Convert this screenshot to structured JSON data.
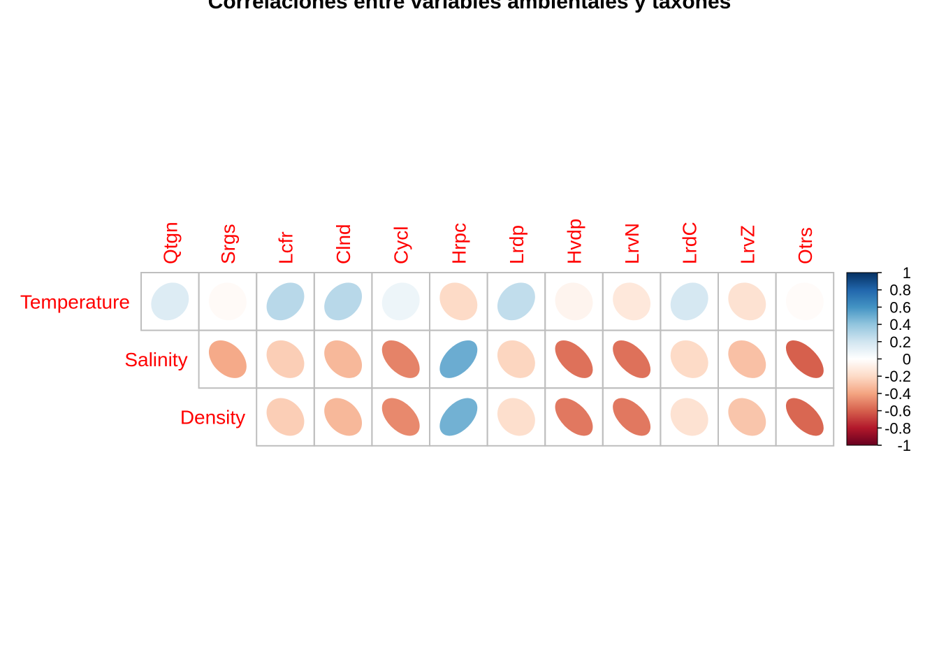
{
  "chart_data": {
    "type": "heatmap",
    "title": "Correlaciones entre variables ambientales y taxones",
    "rows": [
      "Temperature",
      "Salinity",
      "Density"
    ],
    "columns": [
      "Qtgn",
      "Srgs",
      "Lcfr",
      "Clnd",
      "Cycl",
      "Hrpc",
      "Lrdp",
      "Hvdp",
      "LrvN",
      "LrdC",
      "LrvZ",
      "Otrs"
    ],
    "values": [
      [
        0.15,
        -0.03,
        0.28,
        0.28,
        0.08,
        -0.2,
        0.25,
        -0.06,
        -0.13,
        0.18,
        -0.16,
        -0.02
      ],
      [
        null,
        -0.38,
        -0.25,
        -0.33,
        -0.5,
        0.5,
        -0.22,
        -0.55,
        -0.55,
        -0.2,
        -0.3,
        -0.6
      ],
      [
        null,
        null,
        -0.25,
        -0.33,
        -0.48,
        0.48,
        -0.18,
        -0.53,
        -0.53,
        -0.16,
        -0.28,
        -0.58
      ]
    ],
    "shape": "ellipse",
    "layout": "lower-triangular (shifted diagonal)",
    "colorbar": {
      "min": -1,
      "max": 1,
      "ticks": [
        "1",
        "0.8",
        "0.6",
        "0.4",
        "0.2",
        "0",
        "-0.2",
        "-0.4",
        "-0.6",
        "-0.8",
        "-1"
      ],
      "colors": [
        "#67001f",
        "#b2182b",
        "#d6604d",
        "#f4a582",
        "#fddbc7",
        "#ffffff",
        "#d1e5f0",
        "#92c5de",
        "#4393c3",
        "#2166ac",
        "#053061"
      ]
    },
    "label_color": "#ff0000",
    "grid_color": "#bebebe"
  }
}
